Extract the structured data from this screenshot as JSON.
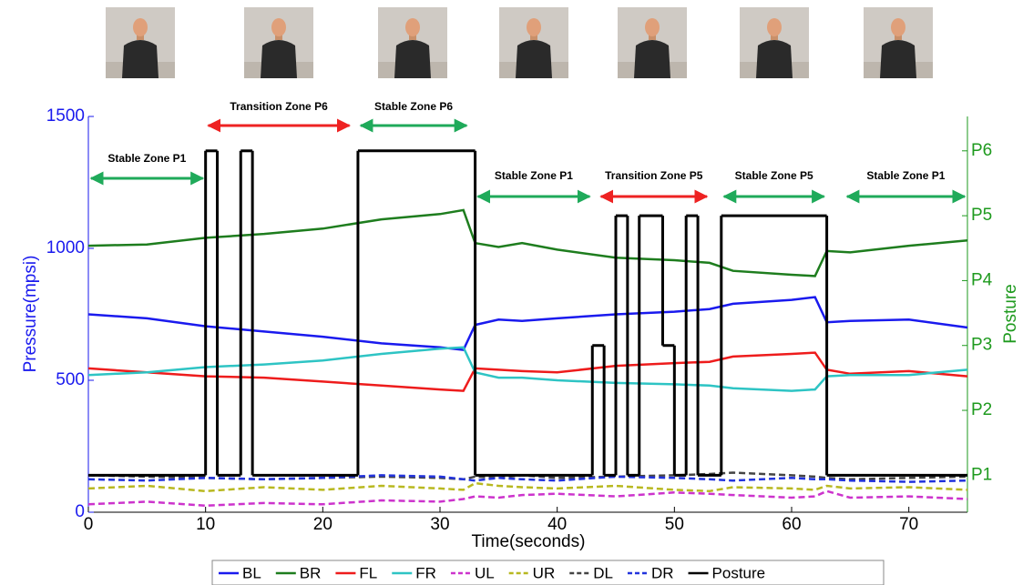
{
  "chart_data": {
    "type": "line",
    "x_label": "Time(seconds)",
    "y_label": "Pressure(mpsi)",
    "y2_label": "Posture",
    "xlim": [
      0,
      75
    ],
    "xticks": [
      0,
      10,
      20,
      30,
      40,
      50,
      60,
      70
    ],
    "ylim": [
      0,
      1500
    ],
    "yticks": [
      0,
      500,
      1000,
      1500
    ],
    "y2lim": [
      0.43,
      6.53
    ],
    "y2ticks": [
      {
        "value": 1,
        "label": "P1"
      },
      {
        "value": 2,
        "label": "P2"
      },
      {
        "value": 3,
        "label": "P3"
      },
      {
        "value": 4,
        "label": "P4"
      },
      {
        "value": 5,
        "label": "P5"
      },
      {
        "value": 6,
        "label": "P6"
      }
    ],
    "x": [
      0,
      5,
      10,
      15,
      20,
      25,
      30,
      32,
      33,
      35,
      37,
      40,
      45,
      50,
      53,
      55,
      60,
      62,
      63,
      65,
      70,
      75
    ],
    "series": [
      {
        "name": "BL",
        "color": "#1a1aee",
        "dash": false,
        "values": [
          750,
          735,
          705,
          685,
          665,
          640,
          625,
          615,
          710,
          730,
          725,
          735,
          750,
          760,
          770,
          790,
          805,
          815,
          720,
          725,
          730,
          700
        ]
      },
      {
        "name": "BR",
        "color": "#1e7d1e",
        "dash": false,
        "values": [
          1010,
          1015,
          1040,
          1055,
          1075,
          1110,
          1130,
          1145,
          1020,
          1005,
          1020,
          995,
          965,
          955,
          945,
          915,
          900,
          895,
          990,
          985,
          1010,
          1030
        ]
      },
      {
        "name": "FL",
        "color": "#ee1c1c",
        "dash": false,
        "values": [
          545,
          530,
          515,
          510,
          495,
          480,
          465,
          460,
          545,
          540,
          535,
          530,
          555,
          565,
          570,
          590,
          600,
          605,
          540,
          525,
          535,
          515
        ]
      },
      {
        "name": "FR",
        "color": "#2ec4c4",
        "dash": false,
        "values": [
          520,
          530,
          550,
          560,
          575,
          600,
          620,
          625,
          530,
          510,
          510,
          500,
          490,
          485,
          480,
          470,
          460,
          465,
          515,
          520,
          520,
          540
        ]
      },
      {
        "name": "UL",
        "color": "#cc33cc",
        "dash": true,
        "values": [
          30,
          40,
          25,
          35,
          30,
          45,
          40,
          50,
          60,
          55,
          65,
          70,
          60,
          75,
          70,
          65,
          55,
          60,
          80,
          55,
          60,
          50
        ]
      },
      {
        "name": "UR",
        "color": "#b8b820",
        "dash": true,
        "values": [
          90,
          100,
          80,
          95,
          85,
          100,
          90,
          85,
          110,
          100,
          95,
          90,
          100,
          85,
          80,
          95,
          90,
          85,
          100,
          90,
          95,
          85
        ]
      },
      {
        "name": "DL",
        "color": "#444444",
        "dash": true,
        "values": [
          140,
          135,
          130,
          125,
          130,
          135,
          130,
          125,
          135,
          130,
          140,
          130,
          135,
          140,
          145,
          150,
          140,
          135,
          130,
          125,
          130,
          135
        ]
      },
      {
        "name": "DR",
        "color": "#2233dd",
        "dash": true,
        "values": [
          125,
          120,
          130,
          125,
          130,
          140,
          135,
          125,
          120,
          130,
          125,
          120,
          135,
          130,
          125,
          120,
          130,
          125,
          125,
          120,
          115,
          120
        ]
      },
      {
        "name": "Posture",
        "color": "#000000",
        "axis": "y2",
        "step": true,
        "x": [
          0,
          10,
          11,
          13,
          14,
          23,
          33,
          43,
          44,
          45,
          46,
          47,
          49,
          50,
          51,
          52,
          54,
          63
        ],
        "values": [
          1,
          6,
          1,
          6,
          1,
          6,
          1,
          3,
          1,
          5,
          1,
          5,
          3,
          1,
          5,
          1,
          5,
          1
        ]
      }
    ],
    "annotations": [
      {
        "text": "Stable  Zone P1",
        "color": "#1faa5a",
        "from": 0,
        "to": 10
      },
      {
        "text": "Transition Zone P6",
        "color": "#ee2222",
        "from": 10,
        "to": 22.5
      },
      {
        "text": "Stable Zone P6",
        "color": "#1faa5a",
        "from": 23,
        "to": 32.5
      },
      {
        "text": "Stable Zone P1",
        "color": "#1faa5a",
        "from": 33,
        "to": 43
      },
      {
        "text": "Transition Zone P5",
        "color": "#ee2222",
        "from": 43.5,
        "to": 53
      },
      {
        "text": "Stable Zone P5",
        "color": "#1faa5a",
        "from": 54,
        "to": 63
      },
      {
        "text": "Stable Zone P1",
        "color": "#1faa5a",
        "from": 64.5,
        "to": 75
      }
    ]
  }
}
